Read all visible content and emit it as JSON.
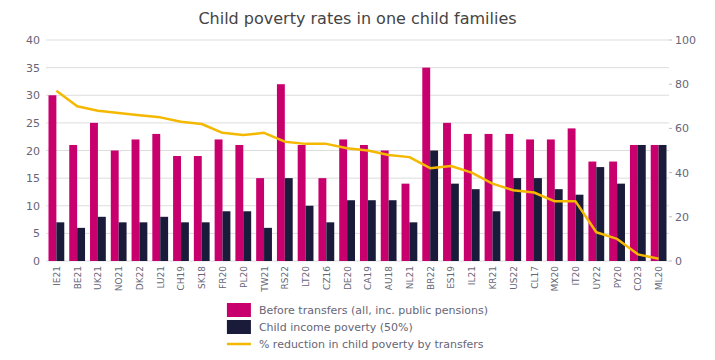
{
  "chart_data": {
    "type": "bar",
    "title": "Child poverty rates in one child families",
    "categories": [
      "IE21",
      "BE21",
      "UK21",
      "NO21",
      "DK22",
      "LU21",
      "CH19",
      "SK18",
      "FR20",
      "PL20",
      "TW21",
      "RS22",
      "LT20",
      "CZ16",
      "DE20",
      "CA19",
      "AU18",
      "NL21",
      "BR22",
      "ES19",
      "IL21",
      "KR21",
      "US22",
      "CL17",
      "MX20",
      "IT20",
      "UY22",
      "PY20",
      "CO23",
      "ML20"
    ],
    "series": [
      {
        "name": "Before transfers (all, inc. public pensions)",
        "color": "#c8006e",
        "values": [
          30,
          21,
          25,
          20,
          22,
          23,
          19,
          19,
          22,
          21,
          15,
          32,
          21,
          15,
          22,
          21,
          20,
          14,
          35,
          25,
          23,
          23,
          23,
          22,
          22,
          24,
          18,
          18,
          21,
          21
        ]
      },
      {
        "name": "Child income poverty (50%)",
        "color": "#1a1a3a",
        "values": [
          7,
          6,
          8,
          7,
          7,
          8,
          7,
          7,
          9,
          9,
          6,
          15,
          10,
          7,
          11,
          11,
          11,
          7,
          20,
          14,
          13,
          9,
          15,
          15,
          13,
          12,
          17,
          14,
          21,
          21
        ]
      },
      {
        "name": "% reduction in child poverty by transfers",
        "type": "line",
        "axis": "y2",
        "color": "#f5b800",
        "values": [
          77,
          70,
          68,
          67,
          66,
          65,
          63,
          62,
          58,
          57,
          58,
          54,
          53,
          53,
          51,
          50,
          48,
          47,
          42,
          43,
          40,
          35,
          32,
          31,
          27,
          27,
          13,
          10,
          3,
          1
        ]
      }
    ],
    "ylim": [
      0,
      40
    ],
    "yticks": [
      0,
      5,
      10,
      15,
      20,
      25,
      30,
      35,
      40
    ],
    "y2lim": [
      0,
      100
    ],
    "y2ticks": [
      0,
      20,
      40,
      60,
      80,
      100
    ],
    "grid": true,
    "legend": "bottom"
  }
}
